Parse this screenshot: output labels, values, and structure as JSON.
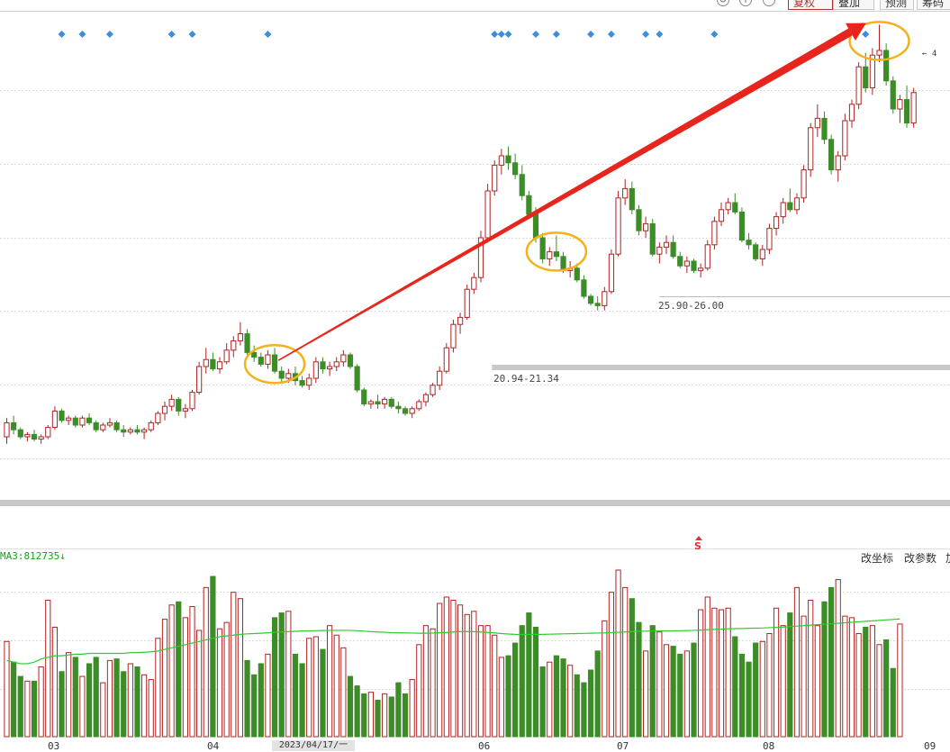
{
  "toolbar": {
    "buttons": [
      {
        "label": "复权",
        "active": true
      },
      {
        "label": "叠加",
        "active": false
      },
      {
        "label": "预测",
        "active": false
      },
      {
        "label": "筹码",
        "active": false
      }
    ]
  },
  "volume_panel": {
    "indicator_text": "MA3:812735",
    "arrow": "↓",
    "tools": [
      "改坐标",
      "改参数",
      "加"
    ]
  },
  "annotations": {
    "range_low": "20.94-21.34",
    "range_mid": "25.90-26.00",
    "top_marker": "← 4"
  },
  "x_axis": {
    "months": [
      "03",
      "04",
      "06",
      "07",
      "08",
      "09"
    ],
    "cursor_date": "2023/04/17/一"
  },
  "signal_mark": "S",
  "colors": {
    "up_candle": "#b22222",
    "down_candle": "#3c8c28",
    "ma_line": "#2ecc2e",
    "arrow": "#e8251c",
    "highlight_circle": "#f3b21a",
    "signal_dot": "#3b8de0",
    "grid": "#d9d9d9",
    "range_band": "#c8c8c8"
  },
  "chart_data": {
    "type": "candlestick",
    "candles": [
      [
        24.0,
        24.8,
        23.7,
        24.6
      ],
      [
        24.6,
        24.9,
        24.1,
        24.3
      ],
      [
        24.3,
        24.4,
        23.9,
        24.0
      ],
      [
        24.0,
        24.2,
        23.8,
        24.1
      ],
      [
        24.1,
        24.3,
        23.8,
        23.9
      ],
      [
        23.9,
        24.1,
        23.7,
        24.0
      ],
      [
        24.0,
        24.5,
        23.9,
        24.4
      ],
      [
        24.4,
        25.3,
        24.3,
        25.1
      ],
      [
        25.1,
        25.2,
        24.6,
        24.7
      ],
      [
        24.7,
        24.9,
        24.5,
        24.8
      ],
      [
        24.8,
        24.9,
        24.4,
        24.5
      ],
      [
        24.5,
        24.9,
        24.4,
        24.8
      ],
      [
        24.8,
        25.0,
        24.5,
        24.6
      ],
      [
        24.6,
        24.7,
        24.2,
        24.3
      ],
      [
        24.3,
        24.6,
        24.2,
        24.5
      ],
      [
        24.5,
        24.8,
        24.4,
        24.6
      ],
      [
        24.6,
        24.7,
        24.2,
        24.3
      ],
      [
        24.3,
        24.5,
        24.0,
        24.2
      ],
      [
        24.2,
        24.4,
        24.1,
        24.3
      ],
      [
        24.3,
        24.5,
        24.1,
        24.2
      ],
      [
        24.2,
        24.4,
        23.9,
        24.3
      ],
      [
        24.3,
        24.7,
        24.2,
        24.6
      ],
      [
        24.6,
        25.1,
        24.5,
        25.0
      ],
      [
        25.0,
        25.5,
        24.7,
        25.3
      ],
      [
        25.3,
        25.8,
        25.1,
        25.6
      ],
      [
        25.6,
        25.7,
        24.9,
        25.1
      ],
      [
        25.1,
        25.4,
        24.8,
        25.2
      ],
      [
        25.2,
        26.0,
        25.1,
        25.9
      ],
      [
        25.9,
        27.2,
        25.8,
        27.0
      ],
      [
        27.0,
        27.8,
        26.7,
        27.3
      ],
      [
        27.3,
        27.6,
        26.8,
        26.9
      ],
      [
        26.9,
        27.4,
        26.7,
        27.2
      ],
      [
        27.2,
        28.0,
        27.1,
        27.7
      ],
      [
        27.7,
        28.3,
        27.4,
        28.1
      ],
      [
        28.1,
        28.9,
        27.9,
        28.4
      ],
      [
        28.4,
        28.6,
        27.4,
        27.6
      ],
      [
        27.6,
        27.9,
        27.2,
        27.4
      ],
      [
        27.4,
        27.6,
        27.0,
        27.1
      ],
      [
        27.1,
        27.7,
        26.9,
        27.5
      ],
      [
        27.5,
        27.8,
        26.7,
        26.8
      ],
      [
        26.8,
        27.0,
        26.3,
        26.5
      ],
      [
        26.5,
        26.9,
        26.3,
        26.7
      ],
      [
        26.7,
        27.0,
        26.2,
        26.4
      ],
      [
        26.4,
        26.6,
        26.1,
        26.2
      ],
      [
        26.2,
        26.7,
        26.0,
        26.5
      ],
      [
        26.5,
        27.4,
        26.3,
        27.2
      ],
      [
        27.2,
        27.4,
        26.7,
        26.9
      ],
      [
        26.9,
        27.2,
        26.6,
        27.0
      ],
      [
        27.0,
        27.4,
        26.8,
        27.2
      ],
      [
        27.2,
        27.7,
        27.0,
        27.5
      ],
      [
        27.5,
        27.6,
        26.9,
        27.0
      ],
      [
        27.0,
        27.1,
        25.9,
        26.0
      ],
      [
        26.0,
        26.1,
        25.3,
        25.4
      ],
      [
        25.4,
        25.6,
        25.2,
        25.5
      ],
      [
        25.5,
        25.8,
        25.2,
        25.4
      ],
      [
        25.4,
        25.7,
        25.2,
        25.6
      ],
      [
        25.6,
        25.7,
        25.2,
        25.3
      ],
      [
        25.3,
        25.5,
        25.0,
        25.2
      ],
      [
        25.2,
        25.3,
        24.9,
        25.0
      ],
      [
        25.0,
        25.3,
        24.8,
        25.2
      ],
      [
        25.2,
        25.6,
        25.1,
        25.5
      ],
      [
        25.5,
        25.9,
        25.3,
        25.8
      ],
      [
        25.8,
        26.3,
        25.7,
        26.2
      ],
      [
        26.2,
        27.0,
        26.0,
        26.8
      ],
      [
        26.8,
        28.0,
        26.7,
        27.8
      ],
      [
        27.8,
        29.0,
        27.6,
        28.8
      ],
      [
        28.8,
        29.3,
        28.4,
        29.1
      ],
      [
        29.1,
        30.5,
        29.0,
        30.3
      ],
      [
        30.3,
        31.0,
        30.1,
        30.8
      ],
      [
        30.8,
        32.8,
        30.6,
        32.5
      ],
      [
        32.5,
        34.8,
        32.3,
        34.5
      ],
      [
        34.5,
        35.8,
        34.3,
        35.6
      ],
      [
        35.6,
        36.3,
        35.2,
        36.0
      ],
      [
        36.0,
        36.4,
        35.4,
        35.7
      ],
      [
        35.7,
        36.1,
        35.0,
        35.2
      ],
      [
        35.2,
        35.6,
        34.1,
        34.3
      ],
      [
        34.3,
        34.5,
        33.3,
        33.5
      ],
      [
        33.5,
        33.8,
        32.3,
        32.5
      ],
      [
        32.5,
        32.7,
        31.4,
        31.6
      ],
      [
        31.6,
        32.1,
        31.3,
        31.9
      ],
      [
        31.9,
        32.6,
        31.5,
        31.7
      ],
      [
        31.7,
        31.9,
        31.0,
        31.1
      ],
      [
        31.1,
        31.5,
        30.8,
        31.2
      ],
      [
        31.2,
        31.4,
        30.6,
        30.7
      ],
      [
        30.7,
        30.9,
        29.9,
        30.0
      ],
      [
        30.0,
        30.1,
        29.6,
        29.7
      ],
      [
        29.7,
        30.0,
        29.4,
        29.6
      ],
      [
        29.6,
        30.4,
        29.4,
        30.2
      ],
      [
        30.2,
        32.0,
        30.1,
        31.8
      ],
      [
        31.8,
        34.5,
        31.7,
        34.2
      ],
      [
        34.2,
        35.0,
        33.9,
        34.6
      ],
      [
        34.6,
        34.9,
        33.5,
        33.7
      ],
      [
        33.7,
        33.9,
        32.6,
        32.8
      ],
      [
        32.8,
        33.4,
        32.5,
        33.1
      ],
      [
        33.1,
        33.3,
        31.7,
        31.8
      ],
      [
        31.8,
        32.3,
        31.4,
        32.1
      ],
      [
        32.1,
        32.6,
        31.8,
        32.3
      ],
      [
        32.3,
        32.6,
        31.6,
        31.7
      ],
      [
        31.7,
        31.9,
        31.2,
        31.3
      ],
      [
        31.3,
        31.7,
        31.0,
        31.5
      ],
      [
        31.5,
        31.6,
        31.0,
        31.1
      ],
      [
        31.1,
        31.4,
        30.8,
        31.2
      ],
      [
        31.2,
        32.4,
        31.1,
        32.2
      ],
      [
        32.2,
        33.4,
        32.0,
        33.2
      ],
      [
        33.2,
        34.0,
        33.0,
        33.7
      ],
      [
        33.7,
        34.2,
        33.5,
        34.0
      ],
      [
        34.0,
        34.4,
        33.5,
        33.6
      ],
      [
        33.6,
        33.8,
        32.3,
        32.4
      ],
      [
        32.4,
        32.7,
        32.0,
        32.2
      ],
      [
        32.2,
        32.3,
        31.5,
        31.6
      ],
      [
        31.6,
        32.2,
        31.3,
        32.0
      ],
      [
        32.0,
        33.1,
        31.8,
        32.9
      ],
      [
        32.9,
        33.6,
        32.6,
        33.4
      ],
      [
        33.4,
        34.2,
        33.1,
        34.0
      ],
      [
        34.0,
        34.6,
        33.6,
        33.7
      ],
      [
        33.7,
        34.4,
        33.5,
        34.2
      ],
      [
        34.2,
        35.6,
        34.0,
        35.4
      ],
      [
        35.4,
        37.4,
        35.1,
        37.2
      ],
      [
        37.2,
        38.2,
        36.8,
        37.6
      ],
      [
        37.6,
        37.9,
        36.5,
        36.7
      ],
      [
        36.7,
        36.9,
        35.2,
        35.4
      ],
      [
        35.4,
        36.2,
        34.9,
        36.0
      ],
      [
        36.0,
        37.8,
        35.8,
        37.5
      ],
      [
        37.5,
        38.4,
        37.2,
        38.2
      ],
      [
        38.2,
        40.0,
        38.0,
        39.8
      ],
      [
        39.8,
        40.4,
        38.7,
        38.9
      ],
      [
        38.9,
        40.6,
        38.6,
        40.3
      ],
      [
        40.3,
        41.6,
        40.0,
        40.5
      ],
      [
        40.5,
        40.8,
        39.0,
        39.2
      ],
      [
        39.2,
        39.4,
        37.8,
        38.0
      ],
      [
        38.0,
        38.6,
        37.4,
        38.4
      ],
      [
        38.4,
        39.0,
        37.2,
        37.4
      ],
      [
        37.4,
        38.9,
        37.2,
        38.7
      ]
    ],
    "volumes": [
      600000,
      470000,
      380000,
      350000,
      350000,
      440000,
      860000,
      690000,
      410000,
      530000,
      500000,
      380000,
      460000,
      500000,
      340000,
      480000,
      490000,
      410000,
      460000,
      440000,
      390000,
      360000,
      620000,
      740000,
      830000,
      850000,
      750000,
      820000,
      670000,
      940000,
      1010000,
      680000,
      720000,
      910000,
      870000,
      480000,
      390000,
      460000,
      520000,
      750000,
      780000,
      790000,
      520000,
      460000,
      620000,
      630000,
      550000,
      700000,
      640000,
      560000,
      380000,
      320000,
      270000,
      280000,
      230000,
      270000,
      250000,
      340000,
      270000,
      360000,
      580000,
      700000,
      680000,
      840000,
      880000,
      860000,
      830000,
      770000,
      790000,
      700000,
      700000,
      640000,
      500000,
      510000,
      590000,
      700000,
      780000,
      690000,
      440000,
      470000,
      510000,
      490000,
      450000,
      390000,
      340000,
      420000,
      540000,
      730000,
      910000,
      1050000,
      940000,
      870000,
      720000,
      540000,
      700000,
      660000,
      580000,
      570000,
      520000,
      540000,
      590000,
      800000,
      880000,
      810000,
      800000,
      810000,
      630000,
      520000,
      470000,
      590000,
      600000,
      650000,
      810000,
      700000,
      780000,
      940000,
      760000,
      860000,
      700000,
      850000,
      940000,
      990000,
      760000,
      750000,
      650000,
      690000,
      700000,
      580000,
      610000,
      430000,
      710000
    ],
    "ma3": [
      480000,
      470000,
      460000,
      460000,
      470000,
      490000,
      500000,
      510000,
      510000,
      515000,
      520000,
      520000,
      525000,
      525000,
      525000,
      525000,
      525000,
      525000,
      530000,
      530000,
      532000,
      535000,
      540000,
      550000,
      560000,
      570000,
      580000,
      590000,
      600000,
      610000,
      620000,
      630000,
      635000,
      640000,
      645000,
      648000,
      650000,
      652000,
      655000,
      658000,
      660000,
      662000,
      664000,
      666000,
      667000,
      668000,
      669000,
      670000,
      670000,
      670000,
      670000,
      668000,
      665000,
      662000,
      660000,
      658000,
      656000,
      655000,
      654000,
      653000,
      652000,
      652000,
      653000,
      655000,
      657000,
      660000,
      662000,
      663000,
      662000,
      660000,
      657000,
      654000,
      650000,
      647000,
      645000,
      644000,
      644000,
      644000,
      645000,
      646000,
      647000,
      648000,
      649000,
      650000,
      651000,
      652000,
      653000,
      654000,
      656000,
      658000,
      660000,
      662000,
      664000,
      665000,
      666000,
      667000,
      667000,
      667000,
      668000,
      669000,
      670000,
      672000,
      674000,
      676000,
      678000,
      680000,
      681000,
      682000,
      683000,
      684000,
      685000,
      687000,
      689000,
      691000,
      694000,
      697000,
      700000,
      703000,
      706000,
      709000,
      712000,
      715000,
      718000,
      721000,
      724000,
      727000,
      730000,
      733000,
      736000,
      739000,
      742000
    ],
    "signal_days": [
      8,
      11,
      15,
      24,
      27,
      38,
      71,
      72,
      73,
      77,
      80,
      85,
      88,
      93,
      95,
      103,
      125
    ],
    "range_low": [
      20.94,
      21.34
    ],
    "range_mid": [
      25.9,
      26.0
    ],
    "highlight_peaks": [
      39,
      80,
      127
    ],
    "arrow_from": 39,
    "arrow_to": 127
  }
}
